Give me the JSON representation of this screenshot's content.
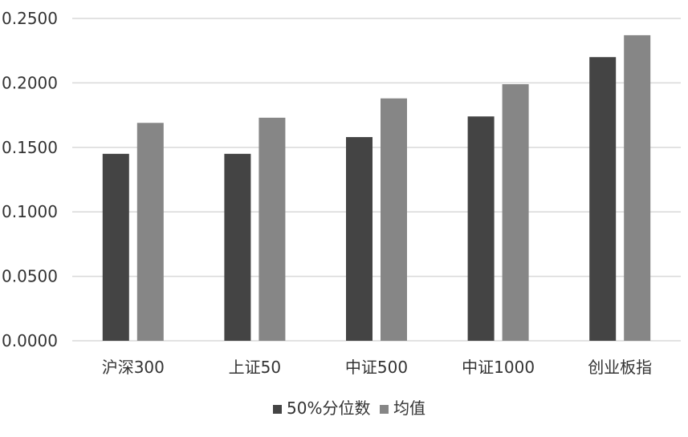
{
  "chart_data": {
    "type": "bar",
    "categories": [
      "沪深300",
      "上证50",
      "中证500",
      "中证1000",
      "创业板指"
    ],
    "series": [
      {
        "name": "50%分位数",
        "color": "#444444",
        "values": [
          0.145,
          0.145,
          0.158,
          0.174,
          0.22
        ]
      },
      {
        "name": "均值",
        "color": "#868686",
        "values": [
          0.169,
          0.173,
          0.188,
          0.199,
          0.237
        ]
      }
    ],
    "yticks": [
      "0.0000",
      "0.0500",
      "0.1000",
      "0.1500",
      "0.2000",
      "0.2500"
    ],
    "ylim": [
      0,
      0.25
    ],
    "grid": true,
    "legend_position": "bottom",
    "gridline_color": "#d9d9d9"
  }
}
